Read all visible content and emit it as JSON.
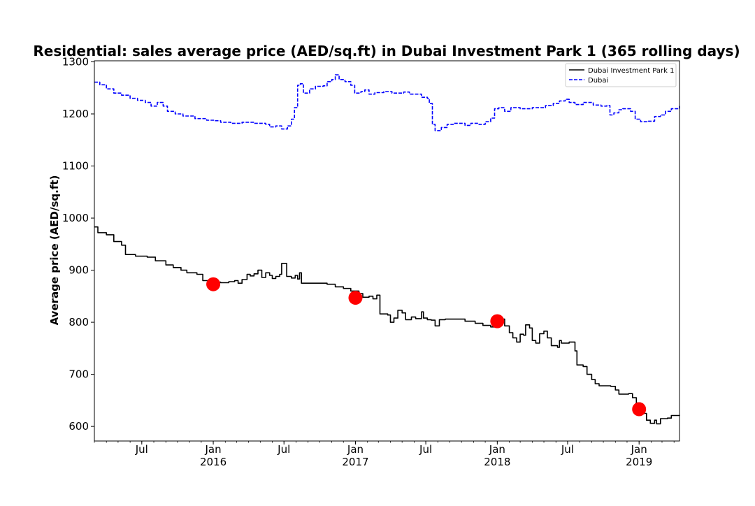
{
  "chart_data": {
    "type": "line",
    "title": "Residential: sales average price (AED/sq.ft) in Dubai Investment Park 1 (365 rolling days)",
    "xlabel": "",
    "ylabel": "Average price (AED/sq.ft)",
    "xlim": [
      "2015-03-01",
      "2019-04-15"
    ],
    "ylim": [
      572,
      1302
    ],
    "yticks": [
      600,
      700,
      800,
      900,
      1000,
      1100,
      1200,
      1300
    ],
    "xticks": [
      {
        "date": "2015-07-01",
        "label": "Jul",
        "sublabel": ""
      },
      {
        "date": "2016-01-01",
        "label": "Jan",
        "sublabel": "2016"
      },
      {
        "date": "2016-07-01",
        "label": "Jul",
        "sublabel": ""
      },
      {
        "date": "2017-01-01",
        "label": "Jan",
        "sublabel": "2017"
      },
      {
        "date": "2017-07-01",
        "label": "Jul",
        "sublabel": ""
      },
      {
        "date": "2018-01-01",
        "label": "Jan",
        "sublabel": "2018"
      },
      {
        "date": "2018-07-01",
        "label": "Jul",
        "sublabel": ""
      },
      {
        "date": "2019-01-01",
        "label": "Jan",
        "sublabel": "2019"
      }
    ],
    "grid": false,
    "legend_position": "top-right",
    "series": [
      {
        "name": "Dubai Investment Park 1",
        "color": "#000000",
        "style": "solid",
        "points": [
          [
            "2015-03-01",
            983
          ],
          [
            "2015-03-10",
            972
          ],
          [
            "2015-04-01",
            968
          ],
          [
            "2015-04-20",
            955
          ],
          [
            "2015-05-10",
            948
          ],
          [
            "2015-05-20",
            930
          ],
          [
            "2015-06-15",
            927
          ],
          [
            "2015-07-15",
            925
          ],
          [
            "2015-08-05",
            918
          ],
          [
            "2015-09-01",
            910
          ],
          [
            "2015-09-20",
            905
          ],
          [
            "2015-10-10",
            900
          ],
          [
            "2015-10-25",
            895
          ],
          [
            "2015-11-20",
            892
          ],
          [
            "2015-12-05",
            880
          ],
          [
            "2015-12-25",
            877
          ],
          [
            "2016-01-20",
            876
          ],
          [
            "2016-02-10",
            878
          ],
          [
            "2016-02-25",
            880
          ],
          [
            "2016-03-05",
            875
          ],
          [
            "2016-03-15",
            882
          ],
          [
            "2016-03-28",
            892
          ],
          [
            "2016-04-05",
            889
          ],
          [
            "2016-04-15",
            893
          ],
          [
            "2016-04-25",
            900
          ],
          [
            "2016-05-05",
            886
          ],
          [
            "2016-05-15",
            895
          ],
          [
            "2016-05-25",
            890
          ],
          [
            "2016-06-01",
            884
          ],
          [
            "2016-06-10",
            888
          ],
          [
            "2016-06-20",
            892
          ],
          [
            "2016-06-25",
            913
          ],
          [
            "2016-07-05",
            913
          ],
          [
            "2016-07-08",
            888
          ],
          [
            "2016-07-20",
            885
          ],
          [
            "2016-07-30",
            890
          ],
          [
            "2016-08-05",
            883
          ],
          [
            "2016-08-10",
            895
          ],
          [
            "2016-08-15",
            875
          ],
          [
            "2016-09-15",
            875
          ],
          [
            "2016-10-20",
            873
          ],
          [
            "2016-11-10",
            868
          ],
          [
            "2016-12-01",
            865
          ],
          [
            "2016-12-20",
            860
          ],
          [
            "2017-01-10",
            855
          ],
          [
            "2017-01-20",
            848
          ],
          [
            "2017-02-05",
            850
          ],
          [
            "2017-02-15",
            845
          ],
          [
            "2017-02-25",
            852
          ],
          [
            "2017-03-05",
            816
          ],
          [
            "2017-03-25",
            814
          ],
          [
            "2017-04-01",
            800
          ],
          [
            "2017-04-10",
            808
          ],
          [
            "2017-04-20",
            823
          ],
          [
            "2017-05-01",
            818
          ],
          [
            "2017-05-10",
            805
          ],
          [
            "2017-05-25",
            810
          ],
          [
            "2017-06-05",
            807
          ],
          [
            "2017-06-20",
            820
          ],
          [
            "2017-06-25",
            808
          ],
          [
            "2017-07-05",
            805
          ],
          [
            "2017-07-15",
            804
          ],
          [
            "2017-07-25",
            793
          ],
          [
            "2017-08-05",
            805
          ],
          [
            "2017-08-20",
            806
          ],
          [
            "2017-09-15",
            806
          ],
          [
            "2017-10-10",
            802
          ],
          [
            "2017-11-05",
            798
          ],
          [
            "2017-11-25",
            794
          ],
          [
            "2017-12-15",
            791
          ],
          [
            "2018-01-01",
            800
          ],
          [
            "2018-01-10",
            806
          ],
          [
            "2018-01-20",
            793
          ],
          [
            "2018-02-01",
            780
          ],
          [
            "2018-02-10",
            770
          ],
          [
            "2018-02-20",
            762
          ],
          [
            "2018-03-01",
            777
          ],
          [
            "2018-03-10",
            775
          ],
          [
            "2018-03-15",
            795
          ],
          [
            "2018-03-25",
            789
          ],
          [
            "2018-04-01",
            765
          ],
          [
            "2018-04-10",
            760
          ],
          [
            "2018-04-20",
            778
          ],
          [
            "2018-05-01",
            783
          ],
          [
            "2018-05-10",
            770
          ],
          [
            "2018-05-20",
            755
          ],
          [
            "2018-06-05",
            752
          ],
          [
            "2018-06-10",
            765
          ],
          [
            "2018-06-15",
            760
          ],
          [
            "2018-07-05",
            762
          ],
          [
            "2018-07-20",
            745
          ],
          [
            "2018-07-25",
            718
          ],
          [
            "2018-08-10",
            715
          ],
          [
            "2018-08-20",
            700
          ],
          [
            "2018-09-01",
            690
          ],
          [
            "2018-09-10",
            682
          ],
          [
            "2018-09-20",
            678
          ],
          [
            "2018-10-20",
            677
          ],
          [
            "2018-11-01",
            670
          ],
          [
            "2018-11-10",
            662
          ],
          [
            "2018-12-05",
            663
          ],
          [
            "2018-12-15",
            655
          ],
          [
            "2018-12-25",
            645
          ],
          [
            "2019-01-05",
            638
          ],
          [
            "2019-01-15",
            625
          ],
          [
            "2019-01-20",
            612
          ],
          [
            "2019-01-30",
            606
          ],
          [
            "2019-02-10",
            612
          ],
          [
            "2019-02-15",
            605
          ],
          [
            "2019-02-25",
            615
          ],
          [
            "2019-03-15",
            616
          ],
          [
            "2019-03-25",
            621
          ],
          [
            "2019-04-15",
            622
          ]
        ]
      },
      {
        "name": "Dubai",
        "color": "#0000ff",
        "style": "dashed",
        "points": [
          [
            "2015-03-01",
            1261
          ],
          [
            "2015-03-15",
            1256
          ],
          [
            "2015-04-01",
            1248
          ],
          [
            "2015-04-20",
            1240
          ],
          [
            "2015-05-10",
            1236
          ],
          [
            "2015-06-01",
            1230
          ],
          [
            "2015-06-20",
            1226
          ],
          [
            "2015-07-10",
            1222
          ],
          [
            "2015-07-25",
            1215
          ],
          [
            "2015-08-10",
            1222
          ],
          [
            "2015-08-25",
            1215
          ],
          [
            "2015-09-05",
            1205
          ],
          [
            "2015-09-25",
            1200
          ],
          [
            "2015-10-15",
            1196
          ],
          [
            "2015-11-15",
            1191
          ],
          [
            "2015-12-15",
            1188
          ],
          [
            "2016-01-05",
            1187
          ],
          [
            "2016-01-20",
            1184
          ],
          [
            "2016-02-15",
            1182
          ],
          [
            "2016-03-15",
            1184
          ],
          [
            "2016-04-15",
            1182
          ],
          [
            "2016-05-15",
            1180
          ],
          [
            "2016-05-25",
            1175
          ],
          [
            "2016-06-10",
            1177
          ],
          [
            "2016-06-25",
            1171
          ],
          [
            "2016-07-10",
            1177
          ],
          [
            "2016-07-20",
            1190
          ],
          [
            "2016-07-28",
            1212
          ],
          [
            "2016-08-05",
            1255
          ],
          [
            "2016-08-12",
            1258
          ],
          [
            "2016-08-20",
            1240
          ],
          [
            "2016-09-05",
            1248
          ],
          [
            "2016-09-20",
            1253
          ],
          [
            "2016-10-10",
            1254
          ],
          [
            "2016-10-20",
            1262
          ],
          [
            "2016-11-01",
            1266
          ],
          [
            "2016-11-10",
            1275
          ],
          [
            "2016-11-20",
            1266
          ],
          [
            "2016-12-05",
            1262
          ],
          [
            "2016-12-20",
            1255
          ],
          [
            "2016-12-30",
            1240
          ],
          [
            "2017-01-15",
            1243
          ],
          [
            "2017-01-25",
            1246
          ],
          [
            "2017-02-05",
            1238
          ],
          [
            "2017-02-20",
            1241
          ],
          [
            "2017-03-15",
            1243
          ],
          [
            "2017-04-05",
            1240
          ],
          [
            "2017-04-20",
            1240
          ],
          [
            "2017-05-05",
            1242
          ],
          [
            "2017-05-20",
            1238
          ],
          [
            "2017-06-20",
            1232
          ],
          [
            "2017-07-05",
            1230
          ],
          [
            "2017-07-10",
            1220
          ],
          [
            "2017-07-18",
            1180
          ],
          [
            "2017-07-25",
            1168
          ],
          [
            "2017-08-10",
            1174
          ],
          [
            "2017-08-25",
            1180
          ],
          [
            "2017-09-10",
            1182
          ],
          [
            "2017-10-10",
            1178
          ],
          [
            "2017-10-25",
            1182
          ],
          [
            "2017-11-15",
            1180
          ],
          [
            "2017-12-01",
            1185
          ],
          [
            "2017-12-15",
            1192
          ],
          [
            "2017-12-25",
            1210
          ],
          [
            "2018-01-05",
            1212
          ],
          [
            "2018-01-20",
            1205
          ],
          [
            "2018-02-05",
            1212
          ],
          [
            "2018-03-01",
            1210
          ],
          [
            "2018-04-01",
            1212
          ],
          [
            "2018-05-05",
            1216
          ],
          [
            "2018-05-25",
            1220
          ],
          [
            "2018-06-10",
            1225
          ],
          [
            "2018-06-25",
            1228
          ],
          [
            "2018-07-05",
            1222
          ],
          [
            "2018-07-20",
            1218
          ],
          [
            "2018-08-10",
            1222
          ],
          [
            "2018-09-05",
            1217
          ],
          [
            "2018-09-25",
            1215
          ],
          [
            "2018-10-10",
            1216
          ],
          [
            "2018-10-18",
            1198
          ],
          [
            "2018-10-28",
            1202
          ],
          [
            "2018-11-10",
            1208
          ],
          [
            "2018-11-20",
            1210
          ],
          [
            "2018-12-10",
            1205
          ],
          [
            "2018-12-22",
            1190
          ],
          [
            "2019-01-05",
            1185
          ],
          [
            "2019-01-25",
            1186
          ],
          [
            "2019-02-10",
            1195
          ],
          [
            "2019-02-25",
            1198
          ],
          [
            "2019-03-10",
            1205
          ],
          [
            "2019-03-25",
            1210
          ],
          [
            "2019-04-15",
            1215
          ]
        ]
      }
    ],
    "highlight_points": [
      {
        "date": "2016-01-01",
        "value": 873
      },
      {
        "date": "2017-01-01",
        "value": 847
      },
      {
        "date": "2018-01-01",
        "value": 802
      },
      {
        "date": "2019-01-01",
        "value": 633
      }
    ],
    "highlight_color": "#ff0000"
  }
}
